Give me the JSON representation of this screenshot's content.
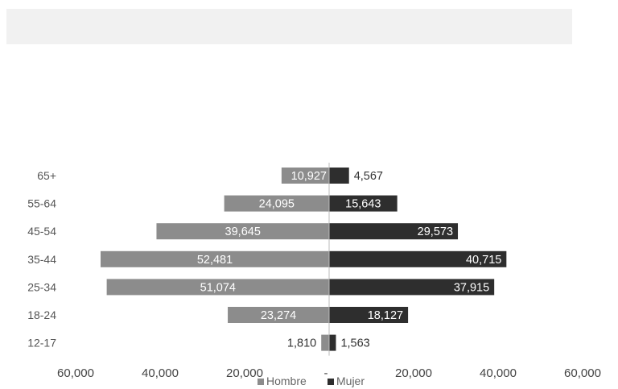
{
  "header": {
    "banner": ""
  },
  "chart_data": {
    "type": "bar",
    "orientation": "horizontal-diverging",
    "categories": [
      "65+",
      "55-64",
      "45-54",
      "35-44",
      "25-34",
      "18-24",
      "12-17"
    ],
    "series": [
      {
        "name": "Hombre",
        "side": "left",
        "color": "#8c8c8c",
        "values": [
          10927,
          24095,
          39645,
          52481,
          51074,
          23274,
          1810
        ],
        "labels": [
          "10,927",
          "24,095",
          "39,645",
          "52,481",
          "51,074",
          "23,274",
          "1,810"
        ]
      },
      {
        "name": "Mujer",
        "side": "right",
        "color": "#2e2e2e",
        "values": [
          4567,
          15643,
          29573,
          40715,
          37915,
          18127,
          1563
        ],
        "labels": [
          "4,567",
          "15,643",
          "29,573",
          "40,715",
          "37,915",
          "18,127",
          "1,563"
        ]
      }
    ],
    "xlim": [
      -60000,
      60000
    ],
    "x_ticks": [
      -60000,
      -40000,
      -20000,
      0,
      20000,
      40000,
      60000
    ],
    "x_tick_labels": [
      "60,000",
      "40,000",
      "20,000",
      "-",
      "20,000",
      "40,000",
      "60,000"
    ],
    "title": "",
    "xlabel": "",
    "ylabel": "",
    "grid": false,
    "legend": {
      "placement": "bottom-center",
      "entries": [
        "Hombre",
        "Mujer"
      ]
    },
    "colors": {
      "hombre": "#8c8c8c",
      "mujer": "#2e2e2e",
      "axis": "#bbbbbb",
      "label_light": "#ffffff",
      "label_dark": "#333333"
    }
  }
}
